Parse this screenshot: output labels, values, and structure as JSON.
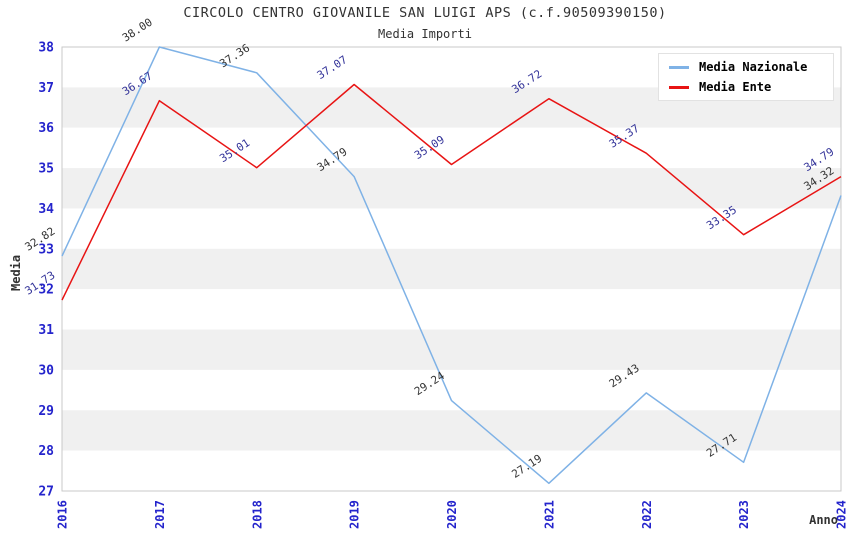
{
  "header": {
    "title": "CIRCOLO CENTRO GIOVANILE SAN LUIGI APS (c.f.90509390150)",
    "subtitle": "Media Importi"
  },
  "legend": {
    "items": [
      {
        "label": "Media Nazionale",
        "color": "#7fb2e6"
      },
      {
        "label": "Media Ente",
        "color": "#e81414"
      }
    ]
  },
  "chart_data": {
    "type": "line",
    "title": "CIRCOLO CENTRO GIOVANILE SAN LUIGI APS (c.f.90509390150)",
    "subtitle": "Media Importi",
    "xlabel": "Anno",
    "ylabel": "Media",
    "x": [
      2016,
      2017,
      2018,
      2019,
      2020,
      2021,
      2022,
      2023,
      2024
    ],
    "series": [
      {
        "name": "Media Nazionale",
        "color": "#7fb2e6",
        "label_color": "#333333",
        "values": [
          32.82,
          38.0,
          37.36,
          34.79,
          29.24,
          27.19,
          29.43,
          27.71,
          34.32
        ]
      },
      {
        "name": "Media Ente",
        "color": "#e81414",
        "label_color": "#333399",
        "values": [
          31.73,
          36.67,
          35.01,
          37.07,
          35.09,
          36.72,
          35.37,
          33.35,
          34.79
        ]
      }
    ],
    "ylim": [
      27,
      38
    ],
    "y_ticks": [
      27,
      28,
      29,
      30,
      31,
      32,
      33,
      34,
      35,
      36,
      37,
      38
    ],
    "tick_color": "#2424cc",
    "axis_title_color": "#333333",
    "band_colors": [
      "#ffffff",
      "#f0f0f0"
    ],
    "border_color": "#c9c9c9",
    "grid": "horizontal-bands",
    "legend_position": "top-right",
    "point_labels": "two-decimals"
  }
}
